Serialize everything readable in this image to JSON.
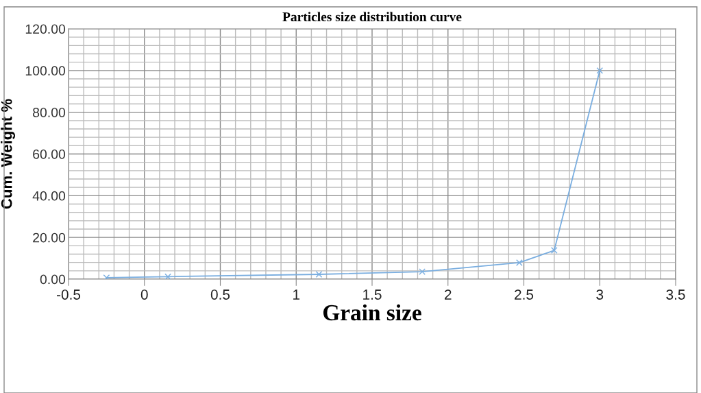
{
  "chart_data": {
    "type": "line",
    "title": "Particles size distribution curve",
    "xlabel": "Grain size",
    "ylabel": "Cum. Weight %",
    "x": [
      -0.25,
      0.155,
      1.15,
      1.83,
      2.47,
      2.7,
      3.0
    ],
    "series": [
      {
        "color": "#7aaee0",
        "values": [
          0.7,
          1.2,
          2.3,
          3.6,
          7.9,
          13.8,
          100
        ]
      }
    ],
    "xlim": [
      -0.5,
      3.5
    ],
    "xticks": [
      -0.5,
      0,
      0.5,
      1,
      1.5,
      2,
      2.5,
      3,
      3.5
    ],
    "ylim": [
      0,
      120
    ],
    "yticks": [
      {
        "value": 0,
        "label": "0.00"
      },
      {
        "value": 20,
        "label": "20.00"
      },
      {
        "value": 40,
        "label": "40.00"
      },
      {
        "value": 60,
        "label": "60.00"
      },
      {
        "value": 80,
        "label": "80.00"
      },
      {
        "value": 100,
        "label": "100.00"
      },
      {
        "value": 120,
        "label": "120.00"
      }
    ],
    "grid": true,
    "marker": "cross",
    "line_style": "solid"
  }
}
